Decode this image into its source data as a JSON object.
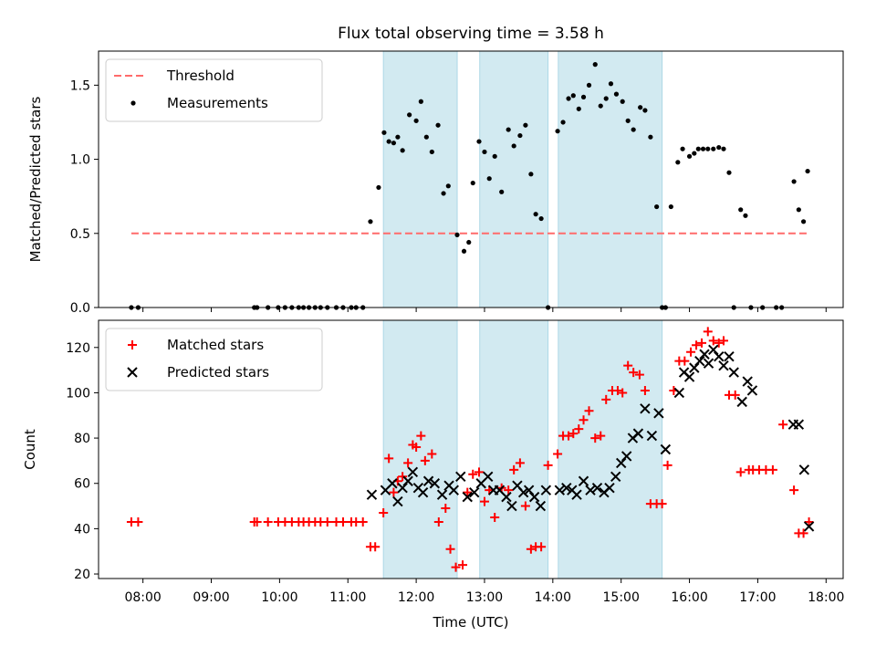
{
  "title": "Flux total observing time = 3.58 h",
  "colors": {
    "band": "#add8e6",
    "threshold": "#ff6b6b",
    "matched": "#ff0000",
    "predicted": "#000000",
    "measurement": "#000000"
  },
  "chart_data": [
    {
      "type": "scatter",
      "ylabel": "Matched/Predicted stars",
      "xlim": [
        7.35,
        18.25
      ],
      "ylim": [
        0,
        1.73
      ],
      "yticks": [
        0.0,
        0.5,
        1.0,
        1.5
      ],
      "yticklabels": [
        "0.0",
        "0.5",
        "1.0",
        "1.5"
      ],
      "legend": {
        "placement": "top-left",
        "entries": [
          "Threshold",
          "Measurements"
        ]
      },
      "threshold": {
        "name": "Threshold",
        "y": 0.5,
        "x": [
          7.83,
          17.73
        ]
      },
      "bands": [
        [
          11.52,
          12.6
        ],
        [
          12.93,
          13.93
        ],
        [
          14.08,
          15.6
        ]
      ],
      "series": [
        {
          "name": "Measurements",
          "x": [
            7.83,
            7.93,
            9.63,
            9.67,
            9.83,
            9.98,
            10.08,
            10.18,
            10.28,
            10.35,
            10.43,
            10.52,
            10.6,
            10.7,
            10.83,
            10.93,
            11.05,
            11.12,
            11.22,
            11.33,
            11.45,
            11.53,
            11.6,
            11.67,
            11.73,
            11.8,
            11.9,
            12.0,
            12.07,
            12.15,
            12.23,
            12.32,
            12.4,
            12.47,
            12.6,
            12.7,
            12.77,
            12.83,
            12.92,
            13.0,
            13.07,
            13.15,
            13.25,
            13.35,
            13.43,
            13.52,
            13.6,
            13.68,
            13.75,
            13.83,
            13.93,
            14.07,
            14.15,
            14.23,
            14.3,
            14.38,
            14.45,
            14.53,
            14.62,
            14.7,
            14.78,
            14.85,
            14.93,
            15.02,
            15.1,
            15.18,
            15.28,
            15.35,
            15.43,
            15.52,
            15.6,
            15.65,
            15.73,
            15.83,
            15.9,
            16.0,
            16.07,
            16.13,
            16.2,
            16.27,
            16.35,
            16.43,
            16.5,
            16.58,
            16.65,
            16.75,
            16.82,
            16.9,
            17.07,
            17.27,
            17.35,
            17.53,
            17.6,
            17.67,
            17.73
          ],
          "y": [
            0.0,
            0.0,
            0.0,
            0.0,
            0.0,
            0.0,
            0.0,
            0.0,
            0.0,
            0.0,
            0.0,
            0.0,
            0.0,
            0.0,
            0.0,
            0.0,
            0.0,
            0.0,
            0.0,
            0.58,
            0.81,
            1.18,
            1.12,
            1.11,
            1.15,
            1.06,
            1.3,
            1.26,
            1.39,
            1.15,
            1.05,
            1.23,
            0.77,
            0.82,
            0.49,
            0.38,
            0.44,
            0.84,
            1.12,
            1.05,
            0.87,
            1.02,
            0.78,
            1.2,
            1.09,
            1.16,
            1.23,
            0.9,
            0.63,
            0.6,
            0.0,
            1.19,
            1.25,
            1.41,
            1.43,
            1.34,
            1.42,
            1.5,
            1.64,
            1.36,
            1.41,
            1.51,
            1.44,
            1.39,
            1.26,
            1.2,
            1.35,
            1.33,
            1.15,
            0.68,
            0.0,
            0.0,
            0.68,
            0.98,
            1.07,
            1.02,
            1.04,
            1.07,
            1.07,
            1.07,
            1.07,
            1.08,
            1.07,
            0.91,
            0.0,
            0.66,
            0.62,
            0.0,
            0.0,
            0.0,
            0.0,
            0.85,
            0.66,
            0.58,
            0.92
          ]
        }
      ]
    },
    {
      "type": "scatter",
      "xlabel": "Time (UTC)",
      "ylabel": "Count",
      "xlim": [
        7.35,
        18.25
      ],
      "ylim": [
        18,
        132
      ],
      "xticks": [
        8,
        9,
        10,
        11,
        12,
        13,
        14,
        15,
        16,
        17,
        18
      ],
      "xticklabels": [
        "08:00",
        "09:00",
        "10:00",
        "11:00",
        "12:00",
        "13:00",
        "14:00",
        "15:00",
        "16:00",
        "17:00",
        "18:00"
      ],
      "yticks": [
        20,
        40,
        60,
        80,
        100,
        120
      ],
      "yticklabels": [
        "20",
        "40",
        "60",
        "80",
        "100",
        "120"
      ],
      "legend": {
        "placement": "top-left",
        "entries": [
          "Matched stars",
          "Predicted stars"
        ]
      },
      "bands": [
        [
          11.52,
          12.6
        ],
        [
          12.93,
          13.93
        ],
        [
          14.08,
          15.6
        ]
      ],
      "series": [
        {
          "name": "Matched stars",
          "marker": "plus",
          "x": [
            7.83,
            7.93,
            9.63,
            9.67,
            9.83,
            9.98,
            10.08,
            10.18,
            10.28,
            10.35,
            10.43,
            10.52,
            10.6,
            10.7,
            10.83,
            10.93,
            11.05,
            11.12,
            11.22,
            11.33,
            11.4,
            11.52,
            11.6,
            11.67,
            11.73,
            11.8,
            11.88,
            11.95,
            12.0,
            12.07,
            12.13,
            12.23,
            12.33,
            12.43,
            12.5,
            12.58,
            12.68,
            12.75,
            12.83,
            12.92,
            13.0,
            13.07,
            13.15,
            13.25,
            13.35,
            13.43,
            13.52,
            13.6,
            13.68,
            13.75,
            13.83,
            13.93,
            14.07,
            14.15,
            14.23,
            14.3,
            14.38,
            14.45,
            14.53,
            14.62,
            14.7,
            14.78,
            14.87,
            14.95,
            15.02,
            15.1,
            15.18,
            15.27,
            15.35,
            15.43,
            15.52,
            15.6,
            15.68,
            15.77,
            15.85,
            15.93,
            16.02,
            16.1,
            16.18,
            16.27,
            16.35,
            16.43,
            16.5,
            16.58,
            16.67,
            16.75,
            16.87,
            16.93,
            17.02,
            17.12,
            17.22,
            17.37,
            17.53,
            17.6,
            17.67,
            17.75
          ],
          "y": [
            43,
            43,
            43,
            43,
            43,
            43,
            43,
            43,
            43,
            43,
            43,
            43,
            43,
            43,
            43,
            43,
            43,
            43,
            43,
            32,
            32,
            47,
            71,
            56,
            61,
            63,
            69,
            77,
            76,
            81,
            70,
            73,
            43,
            49,
            31,
            23,
            24,
            56,
            64,
            65,
            52,
            57,
            45,
            58,
            57,
            66,
            69,
            50,
            31,
            32,
            32,
            68,
            73,
            81,
            81,
            82,
            84,
            88,
            92,
            80,
            81,
            97,
            101,
            101,
            100,
            112,
            109,
            108,
            101,
            51,
            51,
            51,
            68,
            101,
            114,
            114,
            118,
            121,
            122,
            127,
            123,
            122,
            123,
            99,
            99,
            65,
            66,
            66,
            66,
            66,
            66,
            86,
            57,
            38,
            38,
            43
          ]
        },
        {
          "name": "Predicted stars",
          "marker": "x",
          "x": [
            11.35,
            11.55,
            11.65,
            11.73,
            11.8,
            11.88,
            11.95,
            12.03,
            12.1,
            12.18,
            12.27,
            12.38,
            12.48,
            12.55,
            12.65,
            12.75,
            12.85,
            12.95,
            13.05,
            13.13,
            13.22,
            13.32,
            13.4,
            13.48,
            13.57,
            13.65,
            13.73,
            13.82,
            13.9,
            14.1,
            14.2,
            14.28,
            14.35,
            14.45,
            14.55,
            14.65,
            14.75,
            14.83,
            14.92,
            15.0,
            15.08,
            15.17,
            15.25,
            15.35,
            15.45,
            15.55,
            15.65,
            15.85,
            15.92,
            16.0,
            16.07,
            16.15,
            16.22,
            16.28,
            16.35,
            16.43,
            16.5,
            16.58,
            16.65,
            16.77,
            16.85,
            16.92,
            17.52,
            17.6,
            17.68,
            17.75
          ],
          "y": [
            55,
            57,
            60,
            52,
            58,
            61,
            65,
            58,
            56,
            61,
            60,
            55,
            59,
            57,
            63,
            54,
            56,
            60,
            63,
            57,
            57,
            54,
            50,
            59,
            56,
            57,
            54,
            50,
            57,
            57,
            58,
            57,
            55,
            61,
            57,
            58,
            56,
            58,
            63,
            69,
            72,
            80,
            82,
            93,
            81,
            91,
            75,
            100,
            109,
            107,
            111,
            114,
            117,
            113,
            119,
            116,
            112,
            116,
            109,
            96,
            105,
            101,
            86,
            86,
            66,
            41
          ]
        }
      ]
    }
  ]
}
